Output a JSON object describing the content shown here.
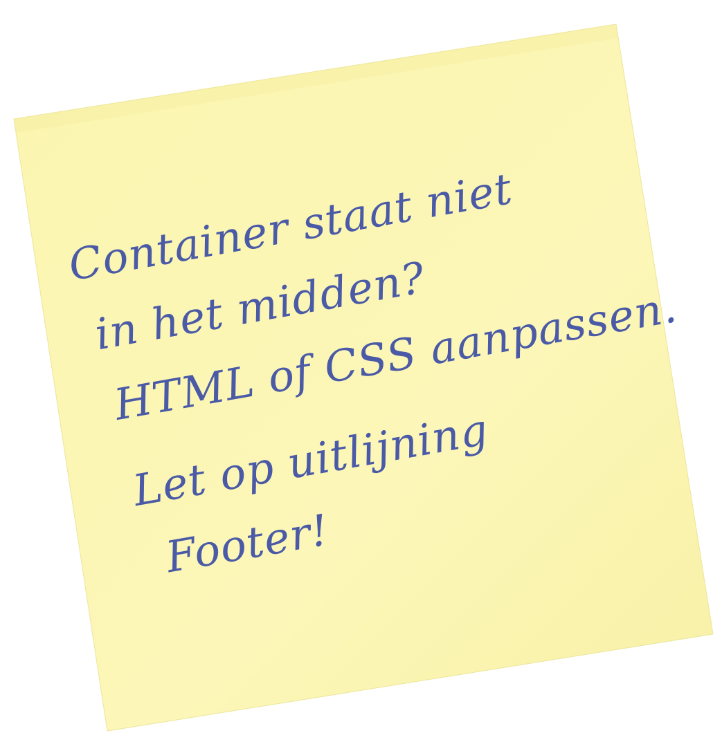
{
  "note": {
    "lines": [
      "Container staat niet",
      "in het midden?",
      "HTML of CSS aanpassen.",
      "Let op uitlijning",
      "Footer!"
    ],
    "paper_color": "#fbf6b4",
    "ink_color": "#4a5aa6"
  }
}
